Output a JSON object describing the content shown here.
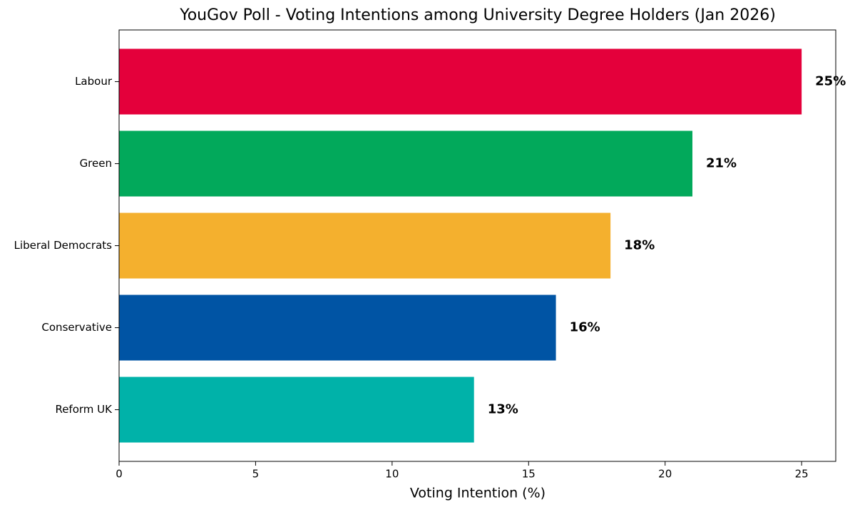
{
  "chart_data": {
    "type": "bar",
    "orientation": "horizontal",
    "title": "YouGov Poll - Voting Intentions among University Degree Holders (Jan 2026)",
    "xlabel": "Voting Intention (%)",
    "categories": [
      "Labour",
      "Green",
      "Liberal Democrats",
      "Conservative",
      "Reform UK"
    ],
    "values": [
      25,
      21,
      18,
      16,
      13
    ],
    "value_labels": [
      "25%",
      "21%",
      "18%",
      "16%",
      "13%"
    ],
    "colors": [
      "#e4003b",
      "#02a95b",
      "#f4b02e",
      "#0054a4",
      "#00b2a9"
    ],
    "xlim": [
      0,
      26.25
    ],
    "xticks": [
      0,
      5,
      10,
      15,
      20,
      25
    ],
    "grid": false
  }
}
